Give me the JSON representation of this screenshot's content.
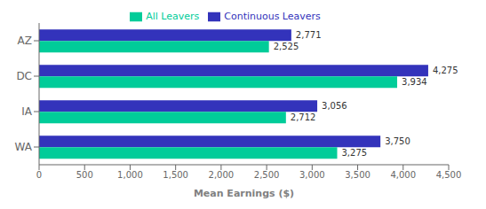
{
  "chart_data": {
    "type": "bar",
    "orientation": "horizontal",
    "xlabel": "Mean Earnings ($)",
    "categories": [
      "AZ",
      "DC",
      "IA",
      "WA"
    ],
    "series": [
      {
        "name": "Continuous Leavers",
        "color": "#3333bb",
        "values": [
          2771,
          4275,
          3056,
          3750
        ],
        "value_labels": [
          "2,771",
          "4,275",
          "3,056",
          "3,750"
        ]
      },
      {
        "name": "All Leavers",
        "color": "#00cc99",
        "values": [
          2525,
          3934,
          2712,
          3275
        ],
        "value_labels": [
          "2,525",
          "3,934",
          "2,712",
          "3,275"
        ]
      }
    ],
    "xlim": [
      0,
      4500
    ],
    "xticks": [
      0,
      500,
      {
        "value": 1000,
        "label": "1,000"
      },
      {
        "value": 1500,
        "label": "1,500"
      },
      {
        "value": 2000,
        "label": "2,000"
      },
      {
        "value": 2500,
        "label": "2,500"
      },
      {
        "value": 3000,
        "label": "3,000"
      },
      {
        "value": 3500,
        "label": "3,500"
      },
      {
        "value": 4000,
        "label": "4,000"
      },
      {
        "value": 4500,
        "label": "4,500"
      }
    ],
    "data_labels": true,
    "legend": "top",
    "grid": false
  }
}
